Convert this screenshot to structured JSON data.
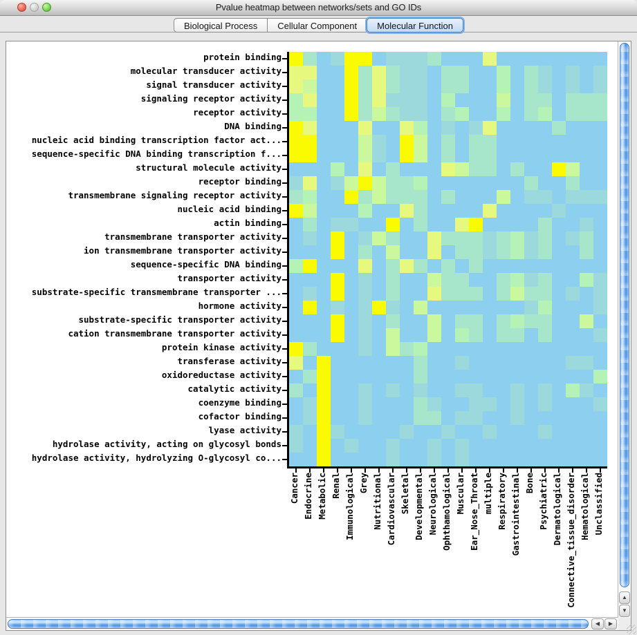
{
  "window": {
    "title": "Pvalue heatmap between networks/sets and GO IDs"
  },
  "tabs": [
    {
      "label": "Biological Process",
      "selected": false
    },
    {
      "label": "Cellular Component",
      "selected": false
    },
    {
      "label": "Molecular Function",
      "selected": true
    }
  ],
  "colors": {
    "selected_tab_ring": "#7fb0e4",
    "scrollbar_thumb_blue": "#4f93e6",
    "heatmap_base_blue": "#8dcfee",
    "heatmap_peak_yellow": "#fbfb00"
  },
  "chart_data": {
    "type": "heatmap",
    "title": "Pvalue heatmap between networks/sets and GO IDs",
    "x_categories": [
      "Cancer",
      "Endocrine",
      "Metabolic",
      "Renal",
      "Immunological",
      "Grey",
      "Nutritional",
      "Cardiovascular",
      "Skeletal",
      "Developmental",
      "Neurological",
      "Ophthamological",
      "Muscular",
      "Ear_Nose_Throat",
      "multiple",
      "Respiratory",
      "Gastrointestinal",
      "Bone",
      "Psychiatric",
      "Dermatological",
      "Connective_tissue_disorder",
      "Hematological",
      "Unclassified"
    ],
    "y_categories": [
      "protein binding",
      "molecular transducer activity",
      "signal transducer activity",
      "signaling receptor activity",
      "receptor activity",
      "DNA binding",
      "nucleic acid binding transcription factor act...",
      "sequence-specific DNA binding transcription f...",
      "structural molecule activity",
      "receptor binding",
      "transmembrane signaling receptor activity",
      "nucleic acid binding",
      "actin binding",
      "transmembrane transporter activity",
      "ion transmembrane transporter activity",
      "sequence-specific DNA binding",
      "transporter activity",
      "substrate-specific transmembrane transporter ...",
      "hormone activity",
      "substrate-specific transporter activity",
      "cation transmembrane transporter activity",
      "protein kinase activity",
      "transferase activity",
      "oxidoreductase activity",
      "catalytic activity",
      "coenzyme binding",
      "cofactor binding",
      "lyase activity",
      "hydrolase activity, acting on glycosyl bonds",
      "hydrolase activity, hydrolyzing O-glycosyl co..."
    ],
    "palette": {
      "Y": "#fbfb00",
      "y": "#e7f87e",
      "g": "#ccf89d",
      "m": "#b5f2b5",
      "c": "#a7e6cb",
      "t": "#9cd9dc",
      "b": "#8dcfee"
    },
    "value_levels": {
      "Y": 6,
      "y": 5,
      "g": 4,
      "m": 3,
      "c": 2,
      "t": 1,
      "b": 0
    },
    "value_meaning": "color level per cell: 6=yellow (most significant p-value) down to 0=light blue (least significant)",
    "values": [
      "YcbtYYbtttcbbbybbbbbbbb",
      "yybbYcycttbccbbmbctbtbt",
      "ygbbYcycttbccbbmbctbtbt",
      "mybbYcytttbmbbbgbccbccc",
      "mmbbYcgcttbcmbbmbcmbccc",
      "Yybbbybbymbtbtybbbbcbbb",
      "YYbbbgtbYgbcbccbbbbbbbb",
      "YYbbbgtbYgbcbccbbbbbbbb",
      "bbbmbybcbbbygccbcbbYgbb",
      "tybtgYgccmbbbbbbbcbbcbb",
      "cmbbYcgcccbcbbbgbttbttt",
      "Ygbbbmbbycbbbbybbbbtbbb",
      "bcbttbbYbcbbyYbbbbcbbtb",
      "btbYbtgcbbyccctcmtcbtcb",
      "bbbYbcbgbbybcctcmtcbbcb",
      "mYbbbybcycbcbcbbbbbbbbb",
      "bbbYbtbcbbgccbbcmtcbbmt",
      "btbYbtbcbbycccbcgccbtbt",
      "bYbtbtYtbgbbbbbbbtmbbbt",
      "bbbYbtbcbbgbccbcmccbbgb",
      "bbbYbtbgbbgbmcbccbcbbbt",
      "Ycbbbtbgcmbbbbbbbbbbbbb",
      "ybYbbbbbbcbbtbbbbbbbttb",
      "bcYbbbbbbcbbbbbbbbbbbbm",
      "cbYbbtbtbtbbttbbtbtbmtb",
      "btYbbtbbbctbbttbtbtbbbt",
      "btYbbtbbbccbttbbtbbbbbb",
      "tbYtbbbbtbbtbbtbbbtbbbb",
      "tbYbtbbtbbtbtbbbbbbbbbb",
      "bbYbbbbtbbtbtbbbbbbbbbb"
    ],
    "cell_size_px": 20,
    "grid_lines": false,
    "legend_position": "none"
  }
}
